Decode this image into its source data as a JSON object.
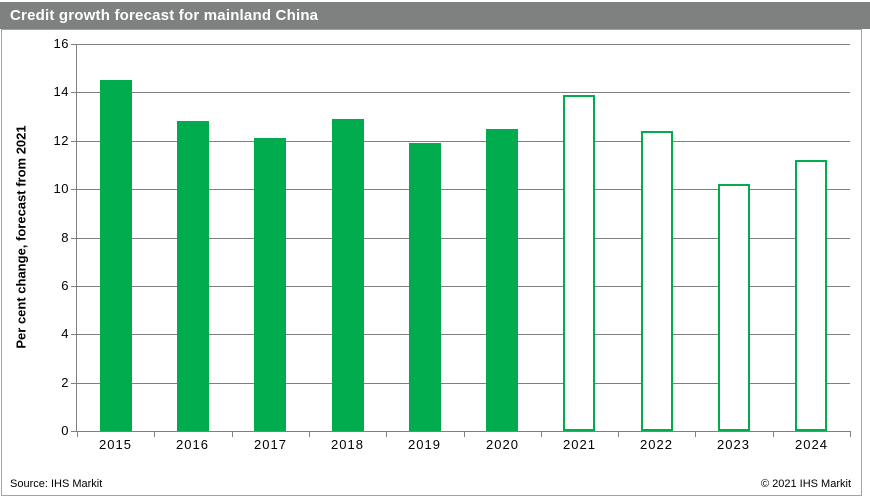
{
  "title": "Credit growth forecast for mainland China",
  "footer": {
    "source": "Source: IHS Markit",
    "copyright": "© 2021  IHS Markit"
  },
  "colors": {
    "bar_green": "#00AC4E",
    "titlebar_gray": "#7F8080",
    "grid_gray": "#808080"
  },
  "chart_data": {
    "type": "bar",
    "title": "Credit growth forecast for mainland China",
    "categories": [
      "2015",
      "2016",
      "2017",
      "2018",
      "2019",
      "2020",
      "2021",
      "2022",
      "2023",
      "2024"
    ],
    "values": [
      14.5,
      12.8,
      12.1,
      12.9,
      11.9,
      12.5,
      13.9,
      12.4,
      10.2,
      11.2
    ],
    "forecast": [
      false,
      false,
      false,
      false,
      false,
      false,
      true,
      true,
      true,
      true
    ],
    "xlabel": "",
    "ylabel": "Per cent change, forecast from 2021",
    "ylim": [
      0,
      16
    ],
    "ytick_step": 2,
    "grid": true,
    "legend_position": "none",
    "bar_style_note": "solid green = history 2015-2020, white with green outline = forecast 2021-2024"
  }
}
